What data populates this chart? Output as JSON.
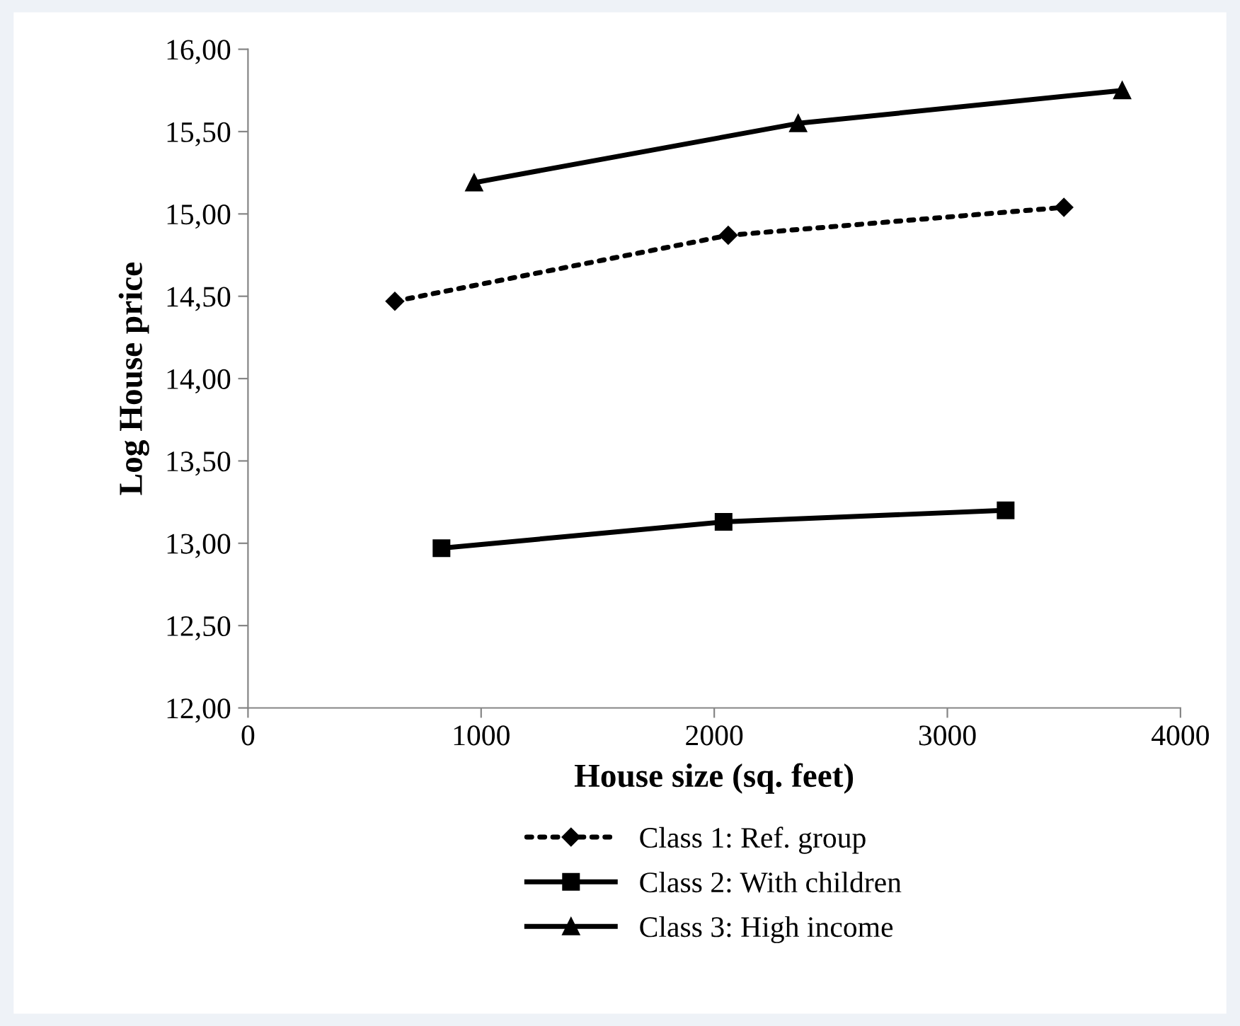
{
  "chart_data": {
    "type": "line",
    "xlabel": "House size (sq. feet)",
    "ylabel": "Log House price",
    "xlim": [
      0,
      4000
    ],
    "xticks": [
      0,
      1000,
      2000,
      3000,
      4000
    ],
    "ylim": [
      12,
      16
    ],
    "yticks": [
      {
        "value": 12,
        "label": "12,00"
      },
      {
        "value": 12.5,
        "label": "12,50"
      },
      {
        "value": 13,
        "label": "13,00"
      },
      {
        "value": 13.5,
        "label": "13,50"
      },
      {
        "value": 14,
        "label": "14,00"
      },
      {
        "value": 14.5,
        "label": "14,50"
      },
      {
        "value": 15,
        "label": "15,00"
      },
      {
        "value": 15.5,
        "label": "15,50"
      },
      {
        "value": 16,
        "label": "16,00"
      }
    ],
    "grid": false,
    "legend": "bottom",
    "series": [
      {
        "name": "Class 1: Ref. group",
        "color": "#000000",
        "x": [
          630,
          2060,
          3500
        ],
        "values": [
          14.47,
          14.87,
          15.04
        ],
        "marker": "diamond",
        "line_style": "dotted"
      },
      {
        "name": "Class 2: With children",
        "color": "#000000",
        "x": [
          830,
          2040,
          3250
        ],
        "values": [
          12.97,
          13.13,
          13.2
        ],
        "marker": "square",
        "line_style": "solid"
      },
      {
        "name": "Class 3: High income",
        "color": "#000000",
        "x": [
          970,
          2360,
          3750
        ],
        "values": [
          15.19,
          15.55,
          15.75
        ],
        "marker": "triangle",
        "line_style": "solid"
      }
    ]
  }
}
